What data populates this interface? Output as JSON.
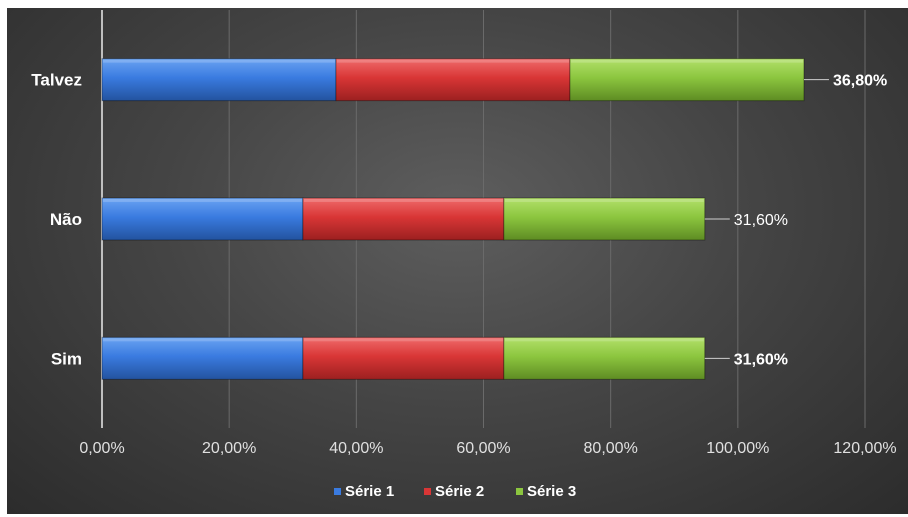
{
  "chart_data": {
    "type": "bar",
    "orientation": "horizontal",
    "stacked": true,
    "categories": [
      "Sim",
      "Não",
      "Talvez"
    ],
    "series": [
      {
        "name": "Série 1",
        "values": [
          31.6,
          31.6,
          36.8
        ],
        "color": "#3a7be0"
      },
      {
        "name": "Série 2",
        "values": [
          31.6,
          31.6,
          36.8
        ],
        "color": "#d93636"
      },
      {
        "name": "Série 3",
        "values": [
          31.6,
          31.6,
          36.8
        ],
        "color": "#8cc63f"
      }
    ],
    "data_labels": [
      {
        "category": "Sim",
        "text": "31,60%",
        "bold": true
      },
      {
        "category": "Não",
        "text": "31,60%",
        "bold": false
      },
      {
        "category": "Talvez",
        "text": "36,80%",
        "bold": true
      }
    ],
    "xlim": [
      0,
      120
    ],
    "xticks": [
      0,
      20,
      40,
      60,
      80,
      100,
      120
    ],
    "xtick_labels": [
      "0,00%",
      "20,00%",
      "40,00%",
      "60,00%",
      "80,00%",
      "100,00%",
      "120,00%"
    ],
    "grid": true,
    "legend_position": "bottom",
    "title": "",
    "xlabel": "",
    "ylabel": ""
  }
}
